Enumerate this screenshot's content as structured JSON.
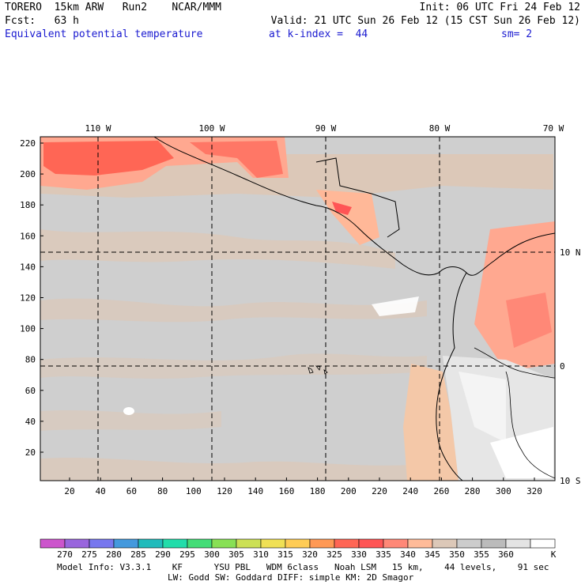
{
  "header": {
    "model": "TORERO",
    "resolution": "15km ARW",
    "run": "Run2",
    "org": "NCAR/MMM",
    "init": "Init: 06 UTC Fri 24 Feb 12",
    "fcst_label": "Fcst:",
    "fcst_value": "63 h",
    "valid": "Valid: 21 UTC Sun 26 Feb 12 (15 CST Sun 26 Feb 12)",
    "field": "Equivalent potential temperature",
    "level": "at k-index =  44",
    "smoothing": "sm= 2"
  },
  "map": {
    "top_lon_labels": [
      "110 W",
      "100 W",
      "90 W",
      "80 W",
      "70 W"
    ],
    "right_lat_labels": [
      "10 N",
      "0",
      "10 S"
    ],
    "left_y_ticks": [
      "220",
      "200",
      "180",
      "160",
      "140",
      "120",
      "100",
      "80",
      "60",
      "40",
      "20"
    ],
    "bottom_x_ticks": [
      "20",
      "40",
      "60",
      "80",
      "100",
      "120",
      "140",
      "160",
      "180",
      "200",
      "220",
      "240",
      "260",
      "280",
      "300",
      "320"
    ]
  },
  "colorbar": {
    "levels": [
      "270",
      "275",
      "280",
      "285",
      "290",
      "295",
      "300",
      "305",
      "310",
      "315",
      "320",
      "325",
      "330",
      "335",
      "340",
      "345",
      "350",
      "355",
      "360"
    ],
    "unit": "K",
    "colors": [
      "#cc55cc",
      "#9966dd",
      "#7777ee",
      "#4499dd",
      "#22bbbb",
      "#22ddaa",
      "#44dd77",
      "#88e055",
      "#cce055",
      "#f0e055",
      "#ffcc55",
      "#ff9955",
      "#ff6655",
      "#ff5555",
      "#ff8877",
      "#ffbb99",
      "#dcc8b8",
      "#cccccc",
      "#bbbbbb",
      "#e4e4e4",
      "#ffffff"
    ]
  },
  "footer": {
    "line1": "Model Info: V3.3.1    KF      YSU PBL   WDM 6class   Noah LSM   15 km,    44 levels,    91 sec",
    "line2": "LW: Godd SW: Goddard DIFF: simple KM: 2D Smagor"
  }
}
